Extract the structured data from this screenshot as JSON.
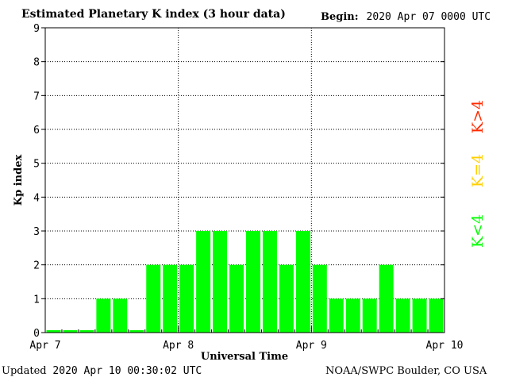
{
  "header": {
    "title": "Estimated Planetary K index (3 hour data)",
    "begin_label": "Begin:",
    "begin_value": "2020 Apr 07 0000 UTC"
  },
  "footer": {
    "updated_label": "Updated",
    "updated_value": "2020 Apr 10 00:30:02 UTC",
    "credit": "NOAA/SWPC Boulder, CO USA"
  },
  "legend": {
    "storm": {
      "label": "K>4",
      "color": "#ff2a00"
    },
    "active": {
      "label": "K=4",
      "color": "#ffd000"
    },
    "quiet": {
      "label": "K<4",
      "color": "#00ff00"
    }
  },
  "chart_data": {
    "type": "bar",
    "title": "Estimated Planetary K index (3 hour data)",
    "xlabel": "Universal Time",
    "ylabel": "Kp index",
    "ylim": [
      0,
      9
    ],
    "yticks": [
      0,
      1,
      2,
      3,
      4,
      5,
      6,
      7,
      8,
      9
    ],
    "xtick_labels": [
      "Apr 7",
      "Apr 8",
      "Apr 9",
      "Apr 10"
    ],
    "grid": true,
    "bar_color": "#00ff00",
    "values": [
      0,
      0,
      0,
      1,
      1,
      0,
      2,
      2,
      2,
      3,
      3,
      2,
      3,
      3,
      2,
      3,
      2,
      1,
      1,
      1,
      2,
      1,
      1,
      1
    ]
  }
}
